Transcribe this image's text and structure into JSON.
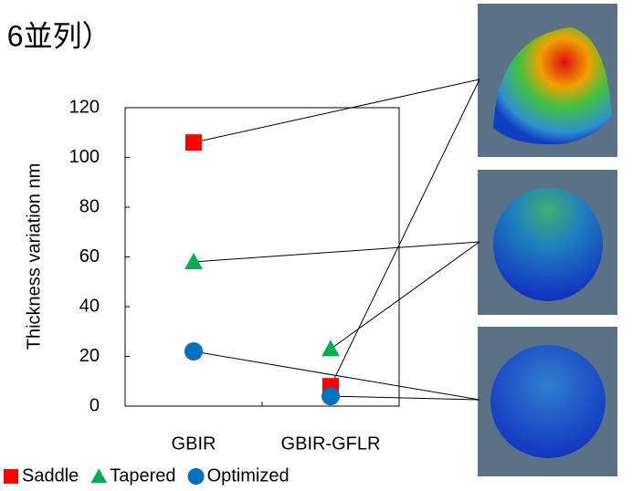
{
  "chart_data": {
    "type": "scatter",
    "title": ", 6並列）",
    "y_label": "Thickness variation  nm",
    "categories": [
      "GBIR",
      "GBIR-GFLR"
    ],
    "series": [
      {
        "name": "Saddle",
        "color": "#ff0000",
        "marker": "square",
        "values": [
          106,
          8
        ]
      },
      {
        "name": "Tapered",
        "color": "#00b050",
        "marker": "triangle",
        "values": [
          58,
          23
        ]
      },
      {
        "name": "Optimized",
        "color": "#0070c0",
        "marker": "circle",
        "values": [
          22,
          4
        ]
      }
    ],
    "ylim": [
      0,
      120
    ],
    "yticks": [
      0,
      20,
      40,
      60,
      80,
      100,
      120
    ],
    "grid": false,
    "legend": "bottom"
  }
}
